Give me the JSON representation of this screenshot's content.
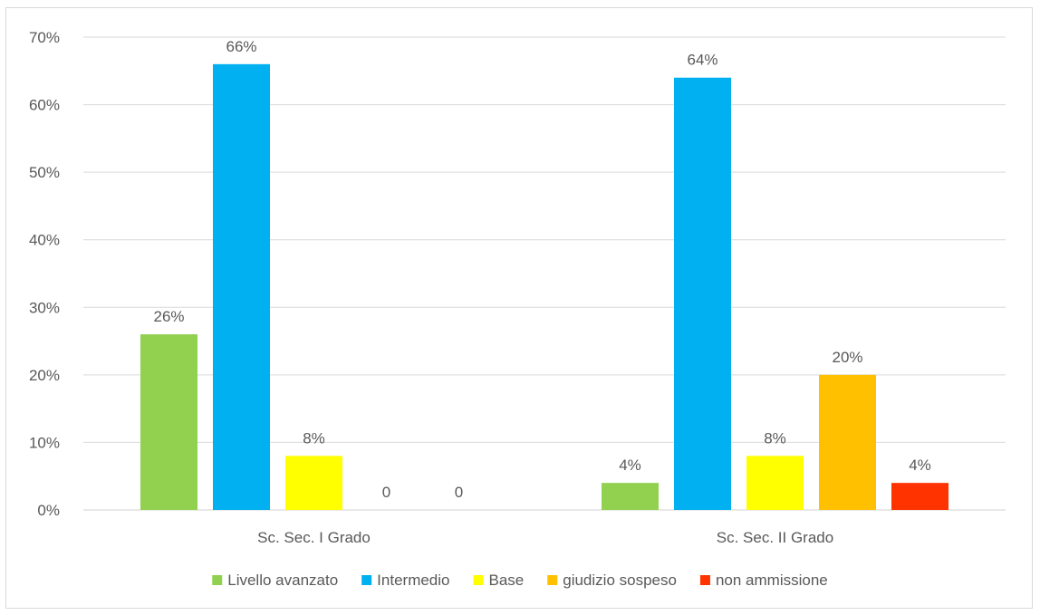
{
  "chart_data": {
    "type": "bar",
    "title": "",
    "xlabel": "",
    "ylabel": "",
    "ylim": [
      0,
      70
    ],
    "y_ticks": [
      "0%",
      "10%",
      "20%",
      "30%",
      "40%",
      "50%",
      "60%",
      "70%"
    ],
    "grid": true,
    "legend_position": "bottom",
    "categories": [
      "Sc. Sec. I Grado",
      "Sc. Sec. II Grado"
    ],
    "series": [
      {
        "name": "Livello avanzato",
        "color": "#92d050",
        "values": [
          26,
          4
        ],
        "labels": [
          "26%",
          "4%"
        ]
      },
      {
        "name": "Intermedio",
        "color": "#00b0f0",
        "values": [
          66,
          64
        ],
        "labels": [
          "66%",
          "64%"
        ]
      },
      {
        "name": "Base",
        "color": "#ffff00",
        "values": [
          8,
          8
        ],
        "labels": [
          "8%",
          "8%"
        ]
      },
      {
        "name": "giudizio sospeso",
        "color": "#ffc000",
        "values": [
          0,
          20
        ],
        "labels": [
          "0",
          "20%"
        ]
      },
      {
        "name": "non ammissione",
        "color": "#ff3300",
        "values": [
          0,
          4
        ],
        "labels": [
          "0",
          "4%"
        ]
      }
    ]
  }
}
